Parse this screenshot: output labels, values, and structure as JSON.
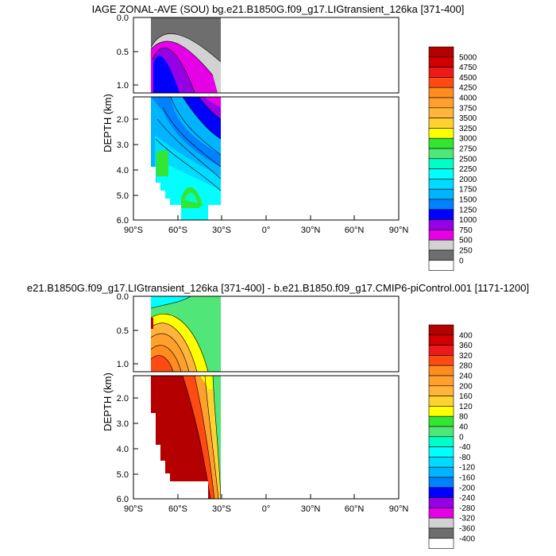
{
  "chart_data": [
    {
      "type": "contour",
      "title": "IAGE ZONAL-AVE (SOU) bg.e21.B1850G.f09_g17.LIGtransient_126ka [371-400]",
      "xlabel": "",
      "ylabel": "DEPTH (km)",
      "x_ticks": [
        "90°S",
        "60°S",
        "30°S",
        "0°",
        "30°N",
        "60°N",
        "90°N"
      ],
      "y_ticks_upper": [
        "0.0",
        "0.5",
        "1.0"
      ],
      "y_ticks_lower": [
        "2.0",
        "3.0",
        "4.0",
        "5.0",
        "6.0"
      ],
      "colorbar_labels": [
        "5000",
        "4750",
        "4500",
        "4250",
        "4000",
        "3750",
        "3500",
        "3250",
        "3000",
        "2750",
        "2500",
        "2250",
        "2000",
        "1750",
        "1500",
        "1250",
        "1000",
        "750",
        "500",
        "250",
        "0"
      ],
      "colorbar_colors": [
        "#b40000",
        "#d20000",
        "#ee1a1a",
        "#ff4a12",
        "#ff8c1e",
        "#ffa02e",
        "#ffb43c",
        "#ffd232",
        "#ffff00",
        "#32e632",
        "#50e678",
        "#00ffc8",
        "#00ffff",
        "#00dcff",
        "#00b4ff",
        "#0082ff",
        "#0000ff",
        "#9600e6",
        "#e600e6",
        "#d2d2d2",
        "#6e6e6e",
        "#ffffff"
      ]
    },
    {
      "type": "contour",
      "title": "e21.B1850G.f09_g17.LIGtransient_126ka [371-400] - b.e21.B1850.f09_g17.CMIP6-piControl.001 [1171-1200]",
      "xlabel": "",
      "ylabel": "DEPTH (km)",
      "x_ticks": [
        "90°S",
        "60°S",
        "30°S",
        "0°",
        "30°N",
        "60°N",
        "90°N"
      ],
      "y_ticks_upper": [
        "0.0",
        "0.5",
        "1.0"
      ],
      "y_ticks_lower": [
        "2.0",
        "3.0",
        "4.0",
        "5.0",
        "6.0"
      ],
      "colorbar_labels": [
        "400",
        "360",
        "320",
        "280",
        "240",
        "200",
        "160",
        "120",
        "80",
        "40",
        "0",
        "-40",
        "-80",
        "-120",
        "-160",
        "-200",
        "-240",
        "-280",
        "-320",
        "-360",
        "-400"
      ],
      "colorbar_colors": [
        "#b40000",
        "#d20000",
        "#ee1a1a",
        "#ff4a12",
        "#ff8c1e",
        "#ffa02e",
        "#ffb43c",
        "#ffd232",
        "#ffff00",
        "#32e632",
        "#50e678",
        "#00ffc8",
        "#00ffff",
        "#00dcff",
        "#00b4ff",
        "#0082ff",
        "#0000ff",
        "#9600e6",
        "#e600e6",
        "#d2d2d2",
        "#6e6e6e",
        "#ffffff"
      ]
    }
  ]
}
